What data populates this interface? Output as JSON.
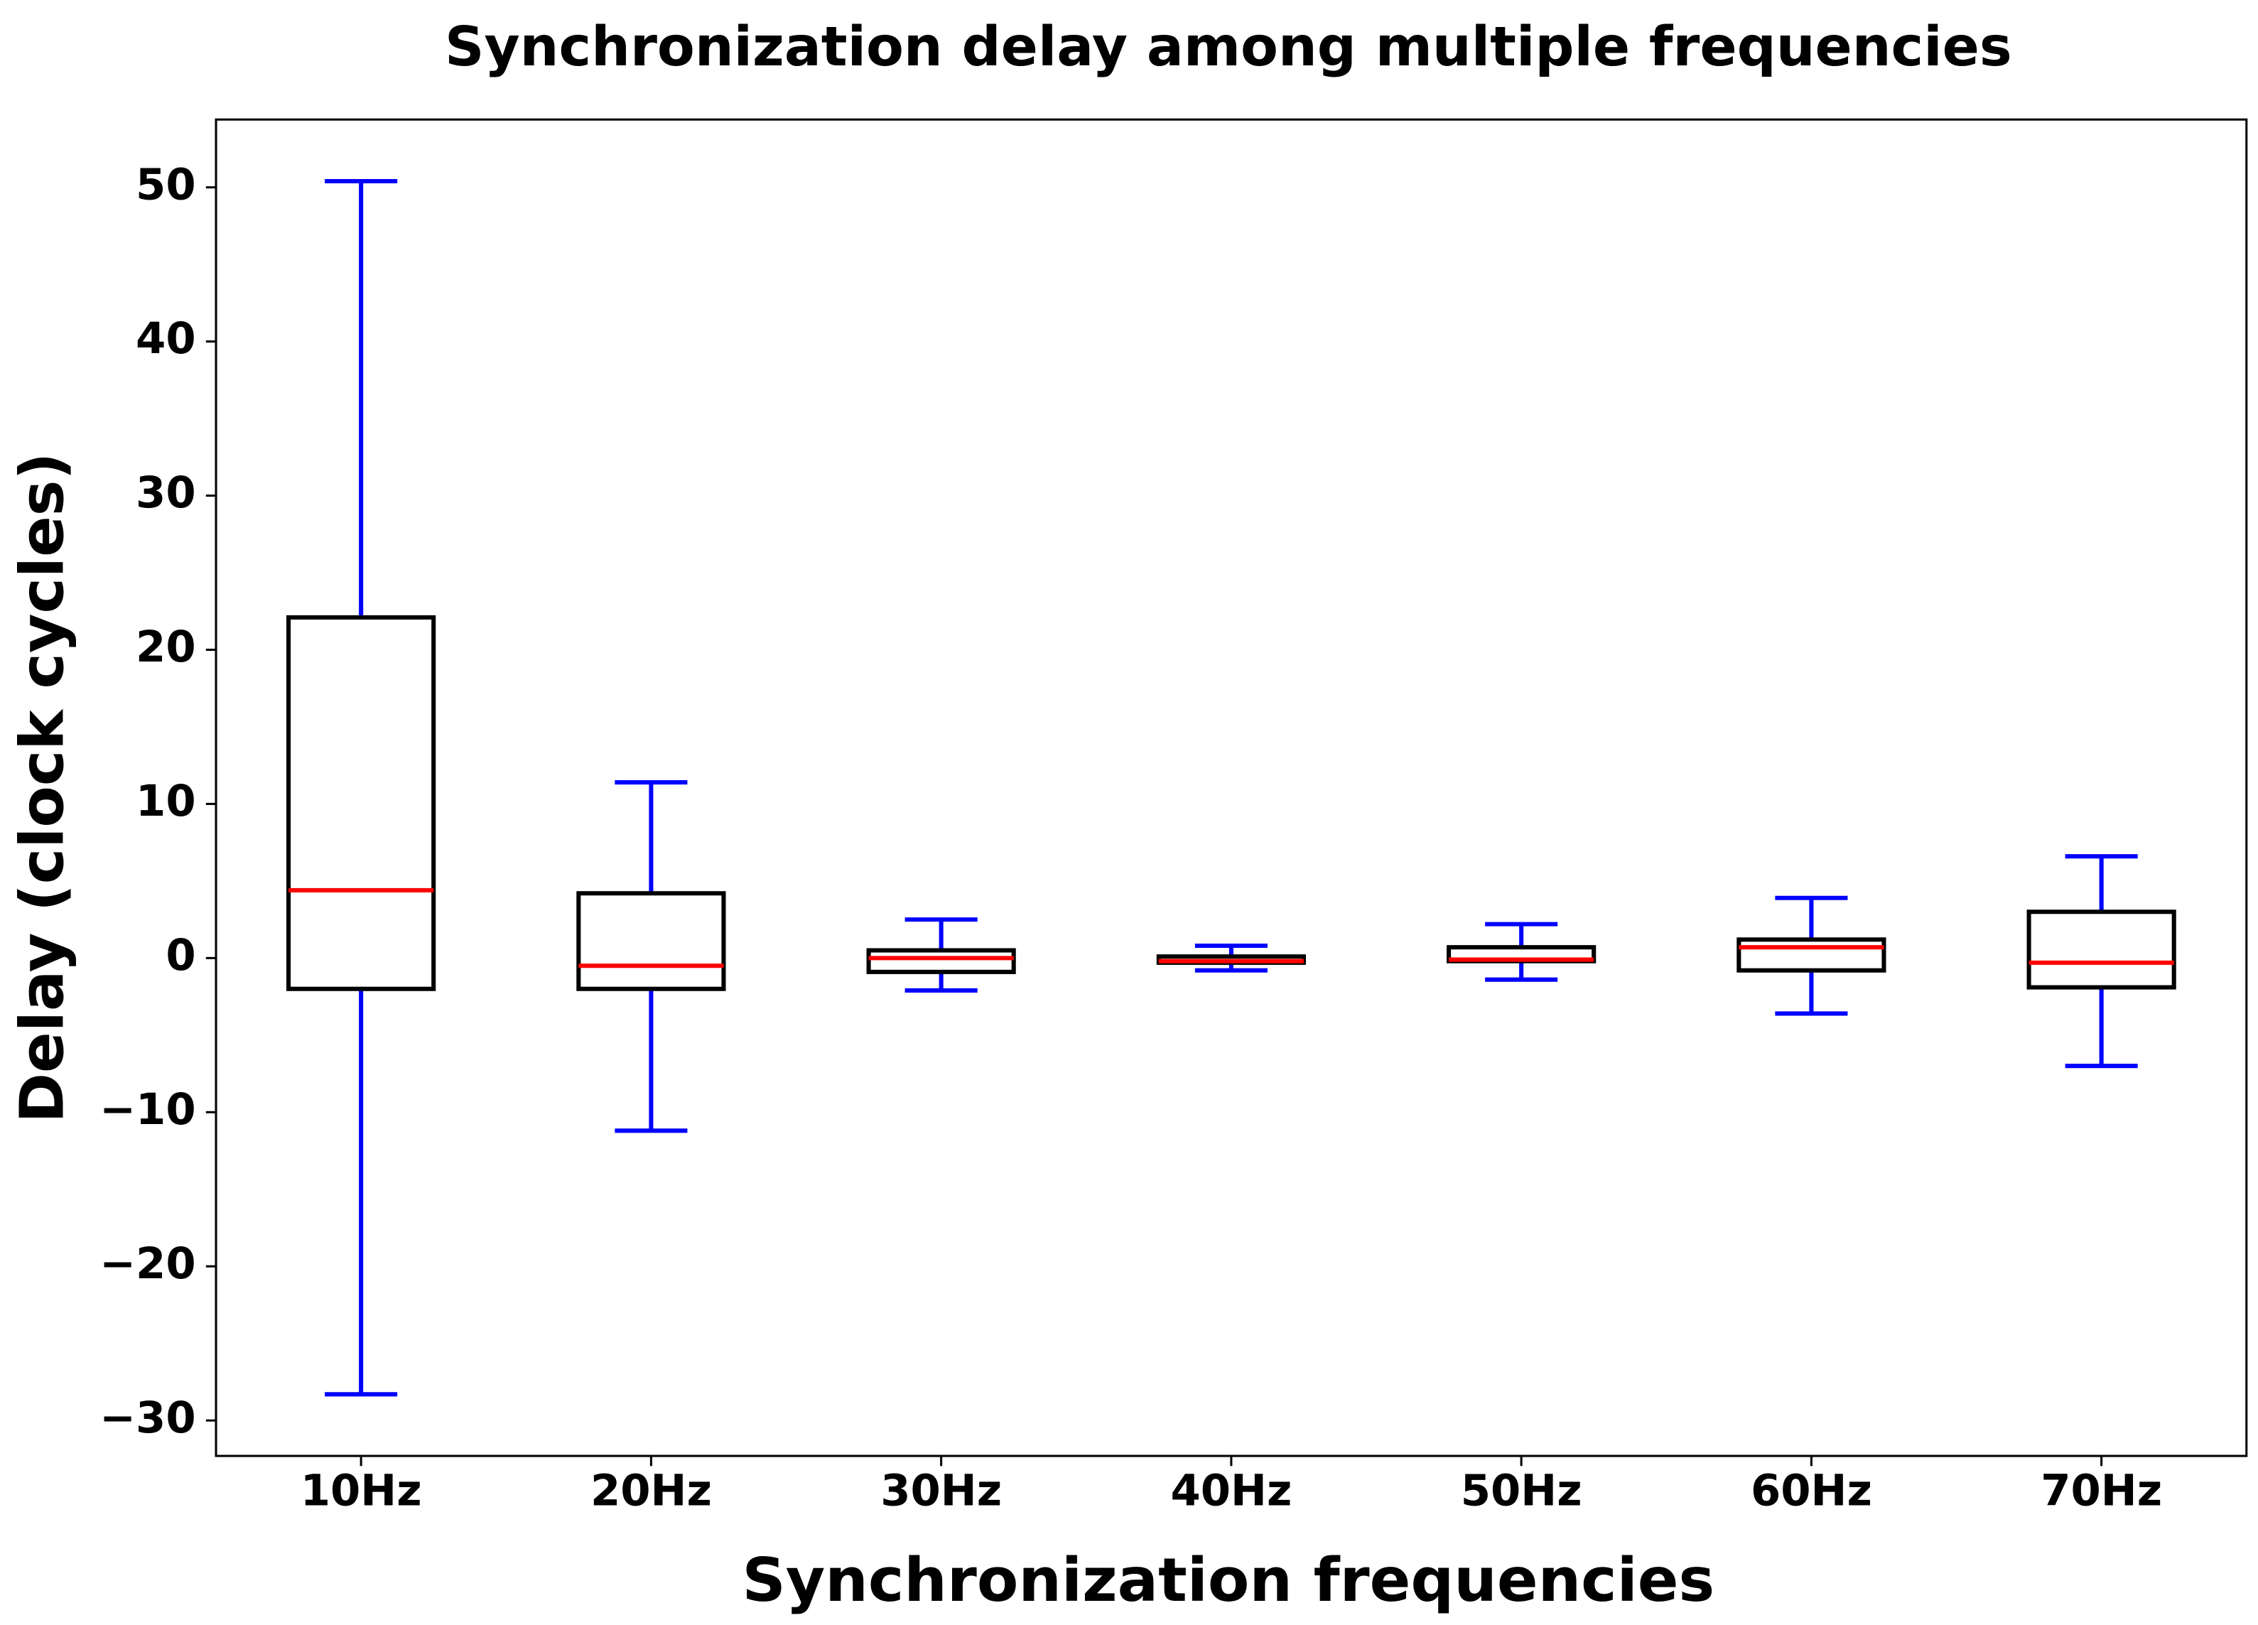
{
  "chart_data": {
    "type": "box",
    "title": "Synchronization delay among multiple frequencies",
    "x_label": "Synchronization frequencies",
    "y_label": "Delay (clock cycles)",
    "categories": [
      "10Hz",
      "20Hz",
      "30Hz",
      "40Hz",
      "50Hz",
      "60Hz",
      "70Hz"
    ],
    "whisker_low": [
      -28.3,
      -11.2,
      -2.1,
      -0.8,
      -1.4,
      -3.6,
      -7.0
    ],
    "q1": [
      -2.0,
      -2.0,
      -0.9,
      -0.3,
      -0.2,
      -0.8,
      -1.9
    ],
    "median": [
      4.4,
      -0.5,
      0.0,
      -0.2,
      -0.1,
      0.7,
      -0.3
    ],
    "q3": [
      22.1,
      4.2,
      0.5,
      0.1,
      0.7,
      1.2,
      3.0
    ],
    "whisker_high": [
      50.4,
      11.4,
      2.5,
      0.8,
      2.2,
      3.9,
      6.6
    ],
    "box_color": "#000000",
    "median_color": "#ff0000",
    "whisker_color": "#0000ff",
    "ylim": [
      -32.3,
      54.4
    ],
    "yticks": [
      {
        "value": -30,
        "label": "−30"
      },
      {
        "value": -20,
        "label": "−20"
      },
      {
        "value": -10,
        "label": "−10"
      },
      0,
      10,
      20,
      30,
      40,
      50
    ],
    "grid": false
  }
}
